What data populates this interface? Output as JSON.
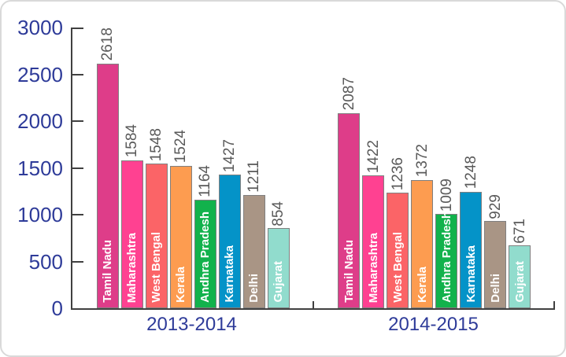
{
  "chart_data": {
    "type": "bar",
    "title": "",
    "categories": [
      "Tamil Nadu",
      "Maharashtra",
      "West Bengal",
      "Kerala",
      "Andhra Pradesh",
      "Karnataka",
      "Delhi",
      "Gujarat"
    ],
    "groups": [
      "2013-2014",
      "2014-2015"
    ],
    "series": [
      {
        "name": "2013-2014",
        "values": [
          2618,
          1584,
          1548,
          1524,
          1164,
          1427,
          1211,
          854
        ]
      },
      {
        "name": "2014-2015",
        "values": [
          2087,
          1422,
          1236,
          1372,
          1009,
          1248,
          929,
          671
        ]
      }
    ],
    "ylim": [
      0,
      3000
    ],
    "yticks": [
      0,
      500,
      1000,
      1500,
      2000,
      2500,
      3000
    ],
    "grid": false,
    "legend": "none",
    "value_label_style": "rotated-90-above-bar",
    "category_label_style": "rotated-90-inside-bar-bottom",
    "bar_colors": [
      "#DE3D89",
      "#FF4191",
      "#FB6467",
      "#FD9C50",
      "#12B24C",
      "#0493C8",
      "#A99585",
      "#91DCCD"
    ],
    "colors": {
      "axis_tick_label": "#2E3B99",
      "group_label": "#2E3B99",
      "value_label": "#595959",
      "bar_label_text": "#FFFFFF",
      "axis_line": "#404040",
      "bar_border": "#808080",
      "card_border": "#D9D9D9",
      "background": "#FFFFFF"
    }
  }
}
